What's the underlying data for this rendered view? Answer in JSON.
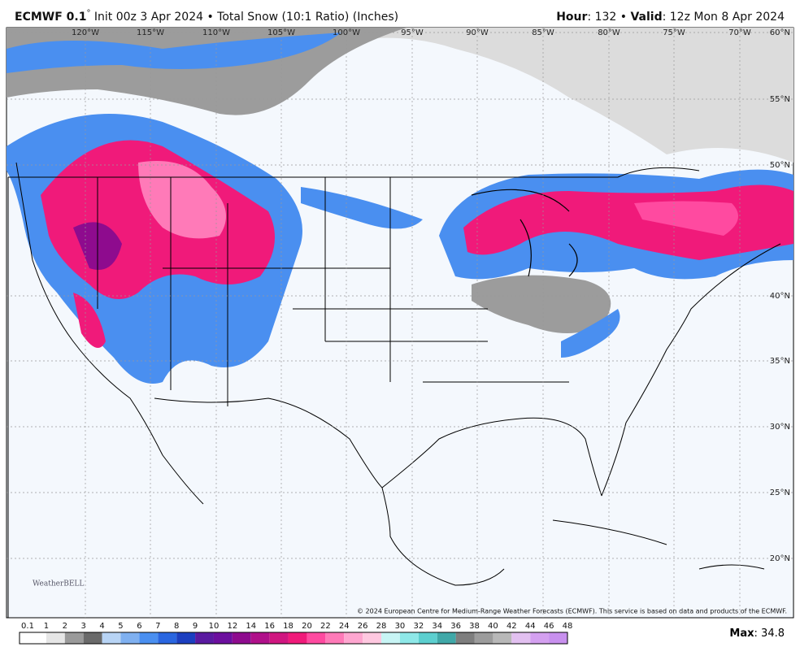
{
  "header": {
    "model": "ECMWF 0.1",
    "degree": "°",
    "run": " Init 00z 3 Apr 2024 • Total Snow (10:1 Ratio) (Inches)",
    "hour_label": "Hour",
    "hour": ": 132 • ",
    "valid_label": "Valid",
    "valid": ": 12z Mon 8 Apr 2024"
  },
  "map": {
    "longitudes": [
      "120°W",
      "115°W",
      "110°W",
      "105°W",
      "100°W",
      "95°W",
      "90°W",
      "85°W",
      "80°W",
      "75°W",
      "70°W"
    ],
    "latitudes": [
      "60°N",
      "55°N",
      "50°N",
      "40°N",
      "35°N",
      "30°N",
      "25°N",
      "20°N"
    ],
    "copyright": "© 2024 European Centre for Medium-Range Weather Forecasts (ECMWF). This service is based on data and products of the ECMWF.",
    "logo": "WeatherBELL"
  },
  "colorbar": {
    "labels": [
      "0.1",
      "1",
      "2",
      "3",
      "4",
      "5",
      "6",
      "7",
      "8",
      "9",
      "10",
      "12",
      "14",
      "16",
      "18",
      "20",
      "22",
      "24",
      "26",
      "28",
      "30",
      "32",
      "34",
      "36",
      "38",
      "40",
      "42",
      "44",
      "46",
      "48"
    ],
    "colors": [
      "#ffffff",
      "#e6e6e6",
      "#9a9a9a",
      "#6a6a6a",
      "#b8d4f5",
      "#7fb0f0",
      "#4a8ff0",
      "#2a66e0",
      "#1c3fc0",
      "#5a1aa0",
      "#6c0f9e",
      "#8e0b8e",
      "#b0108a",
      "#d01680",
      "#f01a7a",
      "#ff4aa0",
      "#ff7ab8",
      "#ffa6d0",
      "#ffc8e0",
      "#c8f5f5",
      "#8ee8e8",
      "#5ccfcf",
      "#40a8a8",
      "#7e7e7e",
      "#9c9c9c",
      "#b8b8b8",
      "#e2c0f0",
      "#d4a0f0",
      "#c890ee"
    ],
    "max_label": "Max",
    "max": ": 34.8"
  }
}
